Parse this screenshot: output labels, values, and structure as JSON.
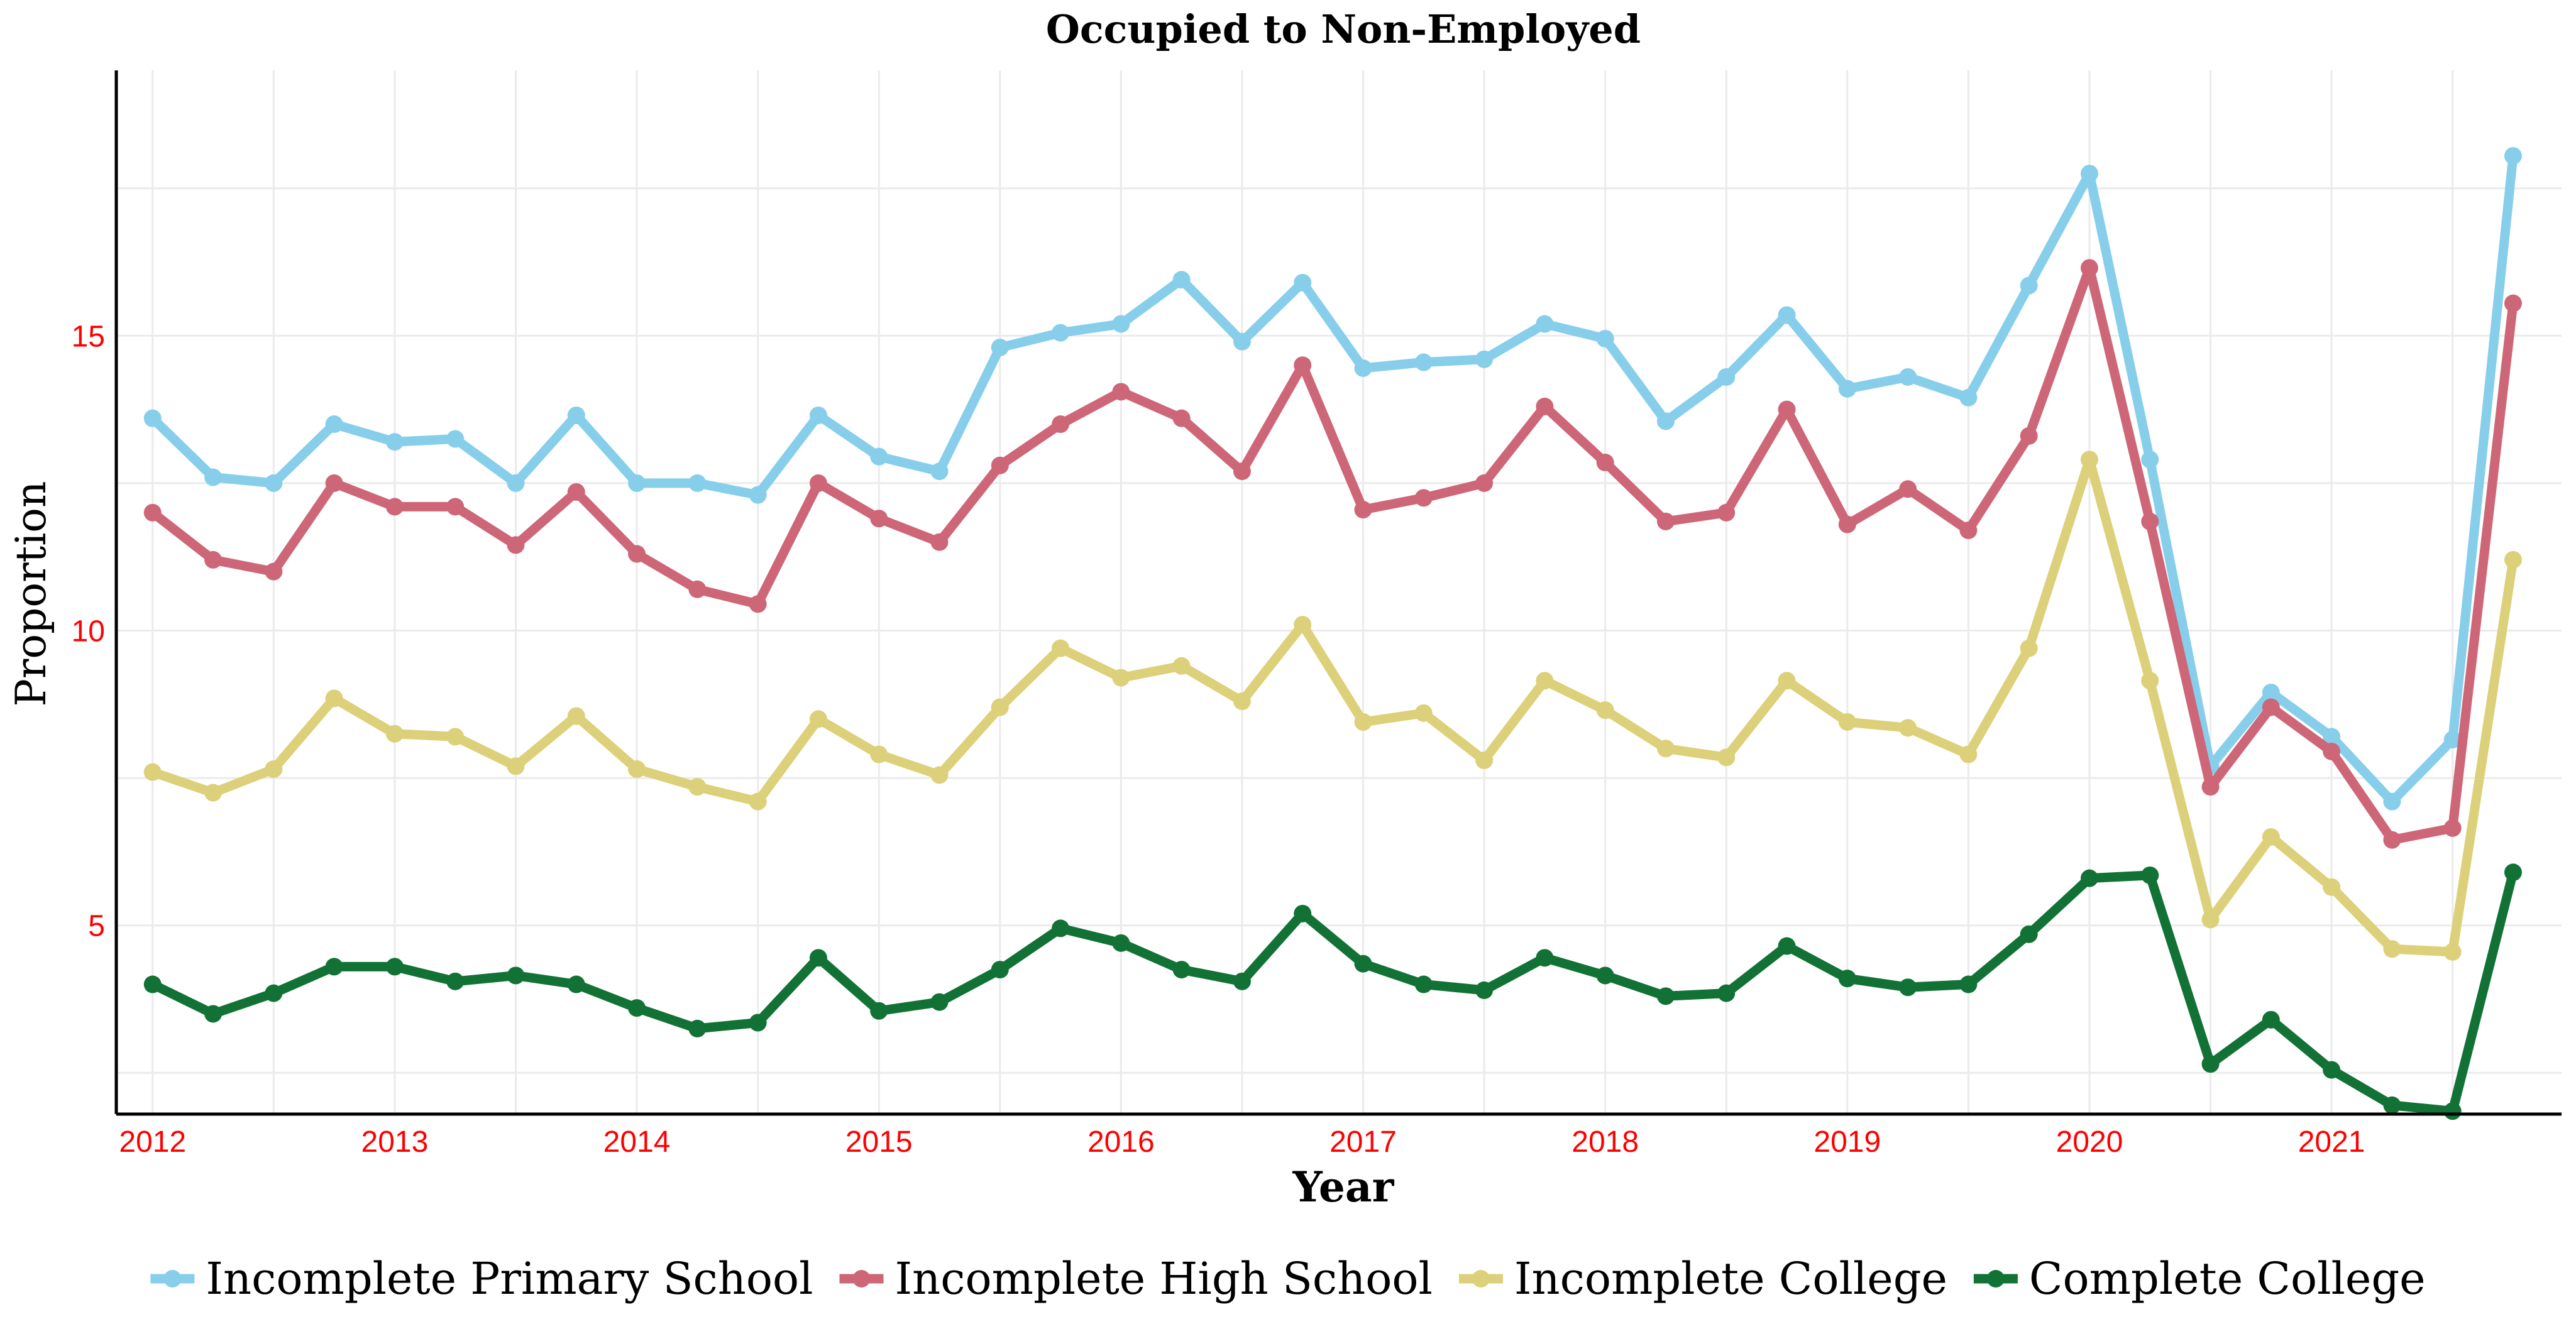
{
  "chart_data": {
    "type": "line",
    "title": "Occupied to Non-Employed",
    "xlabel": "Year",
    "ylabel": "Proportion",
    "x_range": [
      2011.85,
      2021.95
    ],
    "ylim": [
      1.8,
      19.5
    ],
    "x_ticks": [
      2012,
      2013,
      2014,
      2015,
      2016,
      2017,
      2018,
      2019,
      2020,
      2021
    ],
    "y_ticks": [
      5,
      10,
      15
    ],
    "grid": true,
    "legend_position": "bottom",
    "x": [
      2012.0,
      2012.25,
      2012.5,
      2012.75,
      2013.0,
      2013.25,
      2013.5,
      2013.75,
      2014.0,
      2014.25,
      2014.5,
      2014.75,
      2015.0,
      2015.25,
      2015.5,
      2015.75,
      2016.0,
      2016.25,
      2016.5,
      2016.75,
      2017.0,
      2017.25,
      2017.5,
      2017.75,
      2018.0,
      2018.25,
      2018.5,
      2018.75,
      2019.0,
      2019.25,
      2019.5,
      2019.75,
      2020.0,
      2020.25,
      2020.5,
      2020.75,
      2021.0,
      2021.25,
      2021.5,
      2021.75
    ],
    "series": [
      {
        "name": "Incomplete Primary School",
        "color": "#87ceeb",
        "values": [
          13.6,
          12.6,
          12.5,
          13.5,
          13.2,
          13.25,
          12.5,
          13.65,
          12.5,
          12.5,
          12.3,
          13.65,
          12.95,
          12.7,
          14.8,
          15.05,
          15.2,
          15.95,
          14.9,
          15.9,
          14.45,
          14.55,
          14.6,
          15.2,
          14.95,
          13.55,
          14.3,
          15.35,
          14.1,
          14.3,
          13.95,
          15.85,
          17.75,
          12.9,
          7.7,
          8.95,
          8.2,
          7.1,
          8.15,
          18.05
        ]
      },
      {
        "name": "Incomplete High School",
        "color": "#cd6778",
        "values": [
          12.0,
          11.2,
          11.0,
          12.5,
          12.1,
          12.1,
          11.45,
          12.35,
          11.3,
          10.7,
          10.45,
          12.5,
          11.9,
          11.5,
          12.8,
          13.5,
          14.05,
          13.6,
          12.7,
          14.5,
          12.05,
          12.25,
          12.5,
          13.8,
          12.85,
          11.85,
          12.0,
          13.75,
          11.8,
          12.4,
          11.7,
          13.3,
          16.15,
          11.85,
          7.35,
          8.7,
          7.95,
          6.45,
          6.65,
          15.55
        ]
      },
      {
        "name": "Incomplete College",
        "color": "#ddd07a",
        "values": [
          7.6,
          7.25,
          7.65,
          8.85,
          8.25,
          8.2,
          7.7,
          8.55,
          7.65,
          7.35,
          7.1,
          8.5,
          7.9,
          7.55,
          8.7,
          9.7,
          9.2,
          9.4,
          8.8,
          10.1,
          8.45,
          8.6,
          7.8,
          9.15,
          8.65,
          8.0,
          7.85,
          9.15,
          8.45,
          8.35,
          7.9,
          9.7,
          12.9,
          9.15,
          5.1,
          6.5,
          5.65,
          4.6,
          4.55,
          11.2
        ]
      },
      {
        "name": "Complete College",
        "color": "#127235",
        "values": [
          4.0,
          3.5,
          3.85,
          4.3,
          4.3,
          4.05,
          4.15,
          4.0,
          3.6,
          3.25,
          3.35,
          4.45,
          3.55,
          3.7,
          4.25,
          4.95,
          4.7,
          4.25,
          4.05,
          5.2,
          4.35,
          4.0,
          3.9,
          4.45,
          4.15,
          3.8,
          3.85,
          4.65,
          4.1,
          3.95,
          4.0,
          4.85,
          5.8,
          5.85,
          2.65,
          3.4,
          2.55,
          1.95,
          1.85,
          5.9
        ]
      }
    ]
  }
}
